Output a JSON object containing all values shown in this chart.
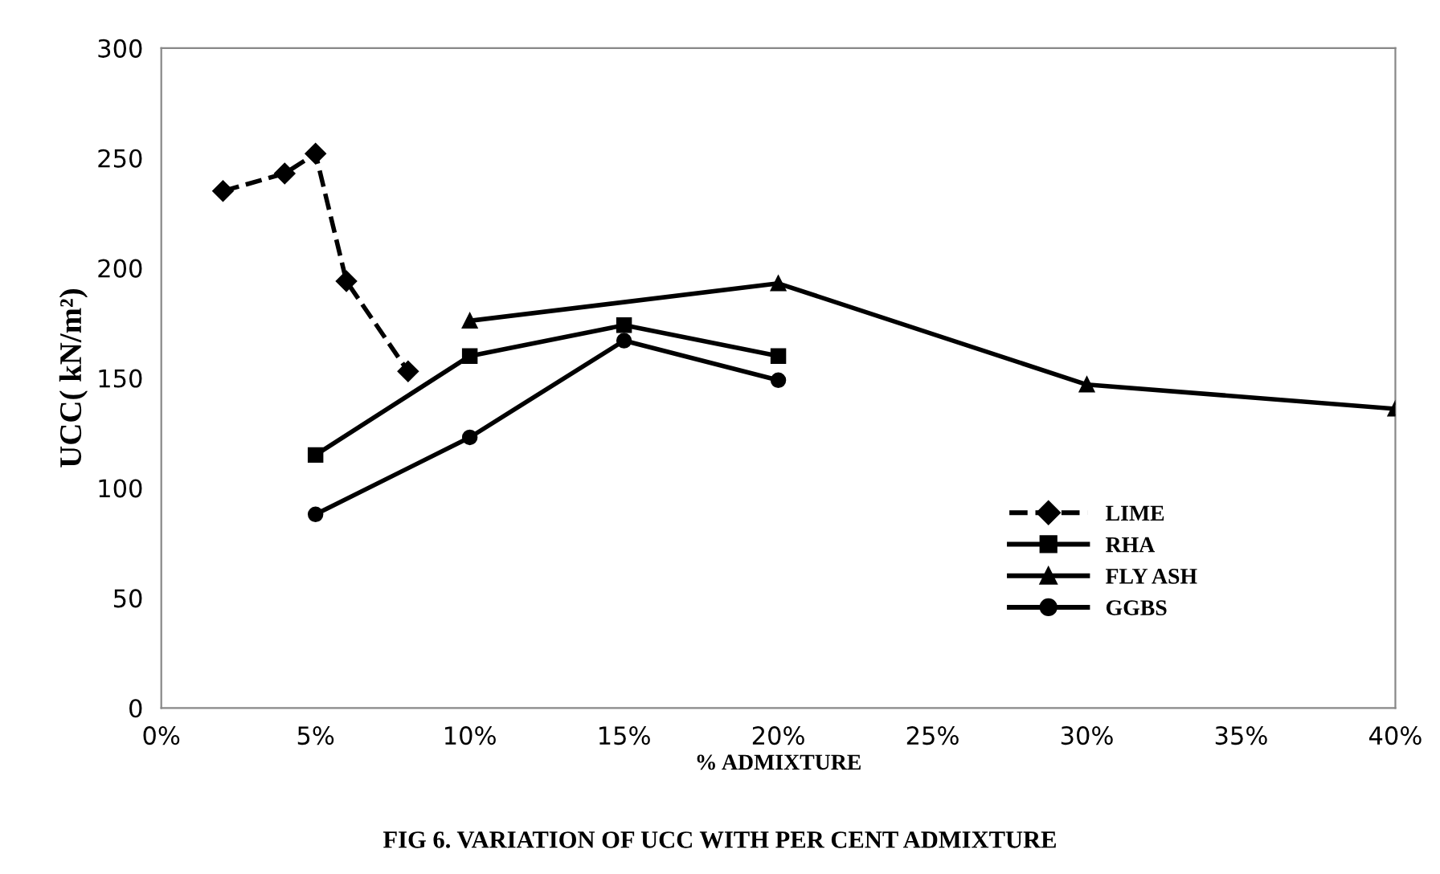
{
  "chart_data": {
    "type": "line",
    "title": "FIG 6. VARIATION OF UCC WITH PER CENT ADMIXTURE",
    "xlabel": "% ADMIXTURE",
    "ylabel": "UCC( kN/m²)",
    "series": [
      {
        "name": "LIME",
        "color": "#000000",
        "marker": "diamond",
        "line_style": "dashed",
        "x": [
          2,
          4,
          5,
          6,
          8
        ],
        "values": [
          235,
          243,
          252,
          194,
          153
        ]
      },
      {
        "name": "RHA",
        "color": "#000000",
        "marker": "square",
        "line_style": "solid",
        "x": [
          5,
          10,
          15,
          20
        ],
        "values": [
          115,
          160,
          174,
          160
        ]
      },
      {
        "name": "FLY ASH",
        "color": "#000000",
        "marker": "triangle",
        "line_style": "solid",
        "x": [
          10,
          20,
          30,
          40
        ],
        "values": [
          176,
          193,
          147,
          136
        ]
      },
      {
        "name": "GGBS",
        "color": "#000000",
        "marker": "circle",
        "line_style": "solid",
        "x": [
          5,
          10,
          15,
          20
        ],
        "values": [
          88,
          123,
          167,
          149
        ]
      }
    ],
    "xlim": [
      0,
      40
    ],
    "xticks": [
      {
        "value": 0,
        "label": "0%"
      },
      {
        "value": 5,
        "label": "5%"
      },
      {
        "value": 10,
        "label": "10%"
      },
      {
        "value": 15,
        "label": "15%"
      },
      {
        "value": 20,
        "label": "20%"
      },
      {
        "value": 25,
        "label": "25%"
      },
      {
        "value": 30,
        "label": "30%"
      },
      {
        "value": 35,
        "label": "35%"
      },
      {
        "value": 40,
        "label": "40%"
      }
    ],
    "ylim": [
      0,
      300
    ],
    "yticks": [
      0,
      50,
      100,
      150,
      200,
      250,
      300
    ],
    "grid": false,
    "legend": "bottom right"
  }
}
